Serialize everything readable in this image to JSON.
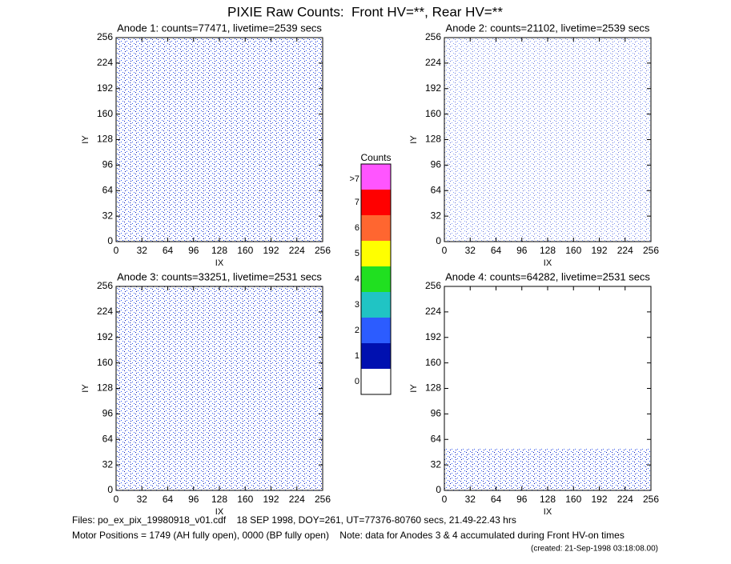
{
  "title": "PIXIE Raw Counts:  Front HV=**, Rear HV=**",
  "chart_data": [
    {
      "type": "heatmap",
      "title": "Anode 1: counts=77471, livetime=2539 secs",
      "xlabel": "IX",
      "ylabel": "IY",
      "xlim": [
        0,
        256
      ],
      "ylim": [
        0,
        256
      ],
      "xticks": [
        0,
        32,
        64,
        96,
        128,
        160,
        192,
        224,
        256
      ],
      "yticks": [
        0,
        32,
        64,
        96,
        128,
        160,
        192,
        224,
        256
      ]
    },
    {
      "type": "heatmap",
      "title": "Anode 2: counts=21102, livetime=2539 secs",
      "xlabel": "IX",
      "ylabel": "IY",
      "xlim": [
        0,
        256
      ],
      "ylim": [
        0,
        256
      ],
      "xticks": [
        0,
        32,
        64,
        96,
        128,
        160,
        192,
        224,
        256
      ],
      "yticks": [
        0,
        32,
        64,
        96,
        128,
        160,
        192,
        224,
        256
      ]
    },
    {
      "type": "heatmap",
      "title": "Anode 3: counts=33251, livetime=2531 secs",
      "xlabel": "IX",
      "ylabel": "IY",
      "xlim": [
        0,
        256
      ],
      "ylim": [
        0,
        256
      ],
      "xticks": [
        0,
        32,
        64,
        96,
        128,
        160,
        192,
        224,
        256
      ],
      "yticks": [
        0,
        32,
        64,
        96,
        128,
        160,
        192,
        224,
        256
      ]
    },
    {
      "type": "heatmap",
      "title": "Anode 4: counts=64282, livetime=2531 secs",
      "xlabel": "IX",
      "ylabel": "IY",
      "xlim": [
        0,
        256
      ],
      "ylim": [
        0,
        256
      ],
      "xticks": [
        0,
        32,
        64,
        96,
        128,
        160,
        192,
        224,
        256
      ],
      "yticks": [
        0,
        32,
        64,
        96,
        128,
        160,
        192,
        224,
        256
      ]
    }
  ],
  "colorbar": {
    "title": "Counts",
    "levels": [
      {
        "label": "0",
        "color": "#ffffff"
      },
      {
        "label": "1",
        "color": "#0010b0"
      },
      {
        "label": "2",
        "color": "#2c5cff"
      },
      {
        "label": "3",
        "color": "#20c4c4"
      },
      {
        "label": "4",
        "color": "#20e020"
      },
      {
        "label": "5",
        "color": "#ffff00"
      },
      {
        "label": "6",
        "color": "#ff6630"
      },
      {
        "label": "7",
        "color": "#ff0000"
      },
      {
        "label": ">7",
        "color": "#ff55ff"
      }
    ]
  },
  "footer": {
    "files": "Files: po_ex_pix_19980918_v01.cdf    18 SEP 1998, DOY=261, UT=77376-80760 secs, 21.49-22.43 hrs",
    "motor": "Motor Positions = 1749 (AH fully open), 0000 (BP fully open)    Note: data for Anodes 3 & 4 accumulated during Front HV-on times",
    "created": "(created: 21-Sep-1998 03:18:08.00)"
  }
}
